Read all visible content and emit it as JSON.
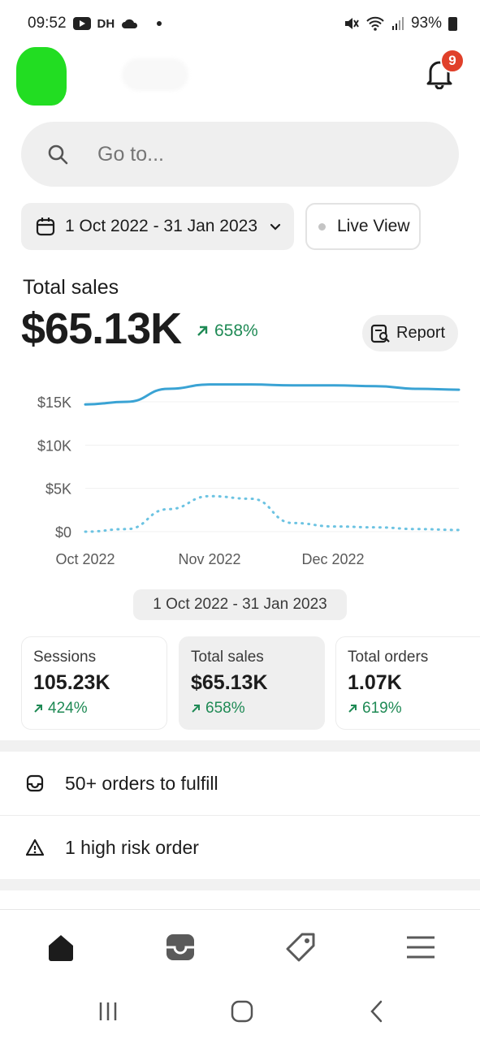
{
  "status_bar": {
    "time": "09:52",
    "carrier_tag": "DH",
    "battery": "93%"
  },
  "header": {
    "notification_count": "9"
  },
  "search": {
    "placeholder": "Go to..."
  },
  "date_filter": {
    "label": "1 Oct 2022 - 31 Jan 2023"
  },
  "live_view": {
    "label": "Live View"
  },
  "summary": {
    "label": "Total sales",
    "value": "$65.13K",
    "change": "658%",
    "report_label": "Report"
  },
  "chart_data": {
    "type": "line",
    "title": "",
    "xlabel": "",
    "ylabel": "",
    "ylim": [
      0,
      16000
    ],
    "y_ticks": [
      "$15K",
      "$10K",
      "$5K",
      "$0"
    ],
    "x_ticks": [
      "Oct 2022",
      "Nov 2022",
      "Dec 2022"
    ],
    "grid": true,
    "series": [
      {
        "values": [
          14700,
          15000,
          16500,
          17000,
          17000,
          16900,
          16900,
          16800,
          16500,
          16400
        ],
        "style": "solid",
        "color": "#3aa3d4"
      },
      {
        "values": [
          0,
          300,
          2600,
          4100,
          3800,
          1000,
          600,
          500,
          300,
          200
        ],
        "style": "dotted",
        "color": "#6cc3e2"
      }
    ],
    "range_label": "1 Oct 2022 - 31 Jan 2023"
  },
  "metrics": [
    {
      "label": "Sessions",
      "value": "105.23K",
      "change": "424%"
    },
    {
      "label": "Total sales",
      "value": "$65.13K",
      "change": "658%"
    },
    {
      "label": "Total orders",
      "value": "1.07K",
      "change": "619%"
    }
  ],
  "tasks": [
    {
      "label": "50+ orders to fulfill",
      "icon": "inbox-icon"
    },
    {
      "label": "1 high risk order",
      "icon": "warning-icon"
    }
  ],
  "colors": {
    "positive": "#1f8a55",
    "badge": "#e0402a",
    "chart_primary": "#3aa3d4"
  }
}
